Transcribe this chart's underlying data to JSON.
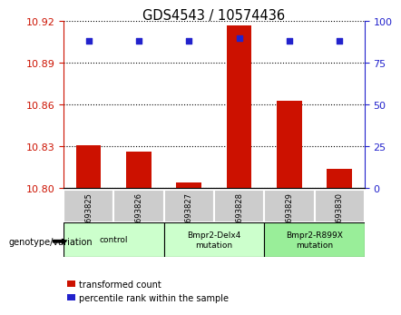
{
  "title": "GDS4543 / 10574436",
  "samples": [
    "GSM693825",
    "GSM693826",
    "GSM693827",
    "GSM693828",
    "GSM693829",
    "GSM693830"
  ],
  "red_values": [
    10.831,
    10.826,
    10.804,
    10.917,
    10.863,
    10.814
  ],
  "blue_values": [
    88,
    88,
    88,
    90,
    88,
    88
  ],
  "ylim_left": [
    10.8,
    10.92
  ],
  "ylim_right": [
    0,
    100
  ],
  "yticks_left": [
    10.8,
    10.83,
    10.86,
    10.89,
    10.92
  ],
  "yticks_right": [
    0,
    25,
    50,
    75,
    100
  ],
  "red_color": "#cc1100",
  "blue_color": "#2222cc",
  "bar_width": 0.5,
  "groups": [
    {
      "label": "control",
      "indices": [
        0,
        1
      ],
      "color": "#ccffcc"
    },
    {
      "label": "Bmpr2-Delx4\nmutation",
      "indices": [
        2,
        3
      ],
      "color": "#ccffcc"
    },
    {
      "label": "Bmpr2-R899X\nmutation",
      "indices": [
        4,
        5
      ],
      "color": "#99ee99"
    }
  ],
  "legend_red": "transformed count",
  "legend_blue": "percentile rank within the sample",
  "xlabel_group": "genotype/variation",
  "tick_bg_color": "#cccccc",
  "plot_bg_color": "#ffffff"
}
